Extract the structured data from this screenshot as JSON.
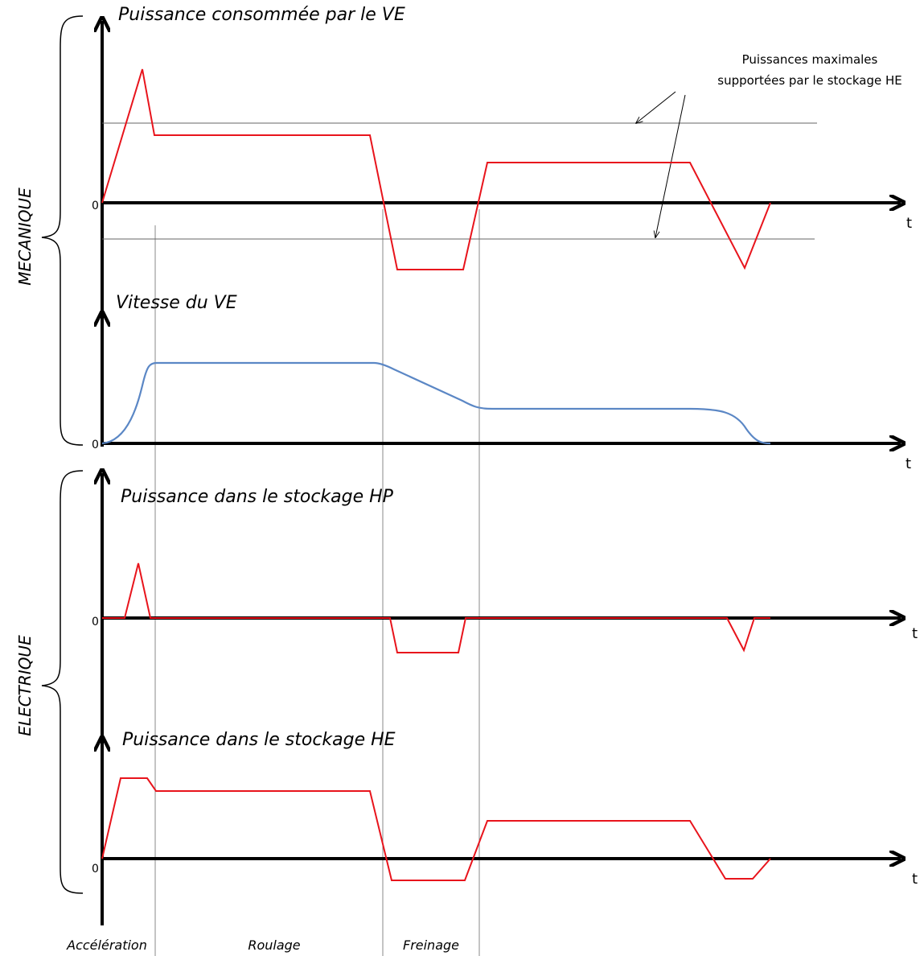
{
  "panels": {
    "meca_power": {
      "title": "Puissance consommée par le VE",
      "zero": "0",
      "t": "t"
    },
    "speed": {
      "title": "Vitesse du VE",
      "zero": "0",
      "t": "t"
    },
    "hp_power": {
      "title": "Puissance dans le stockage  HP",
      "zero": "0",
      "t": "t"
    },
    "he_power": {
      "title": "Puissance dans le stockage  HE",
      "zero": "0",
      "t": "t"
    }
  },
  "annotation": {
    "line1": "Puissances maximales",
    "line2": "supportées par le stockage HE"
  },
  "groups": {
    "mechanical": "MECANIQUE",
    "electrical": "ELECTRIQUE"
  },
  "phases": {
    "acceleration": "Accélération",
    "rolling": "Roulage",
    "braking": "Freinage"
  },
  "colors": {
    "power_curve": "#e8141c",
    "speed_curve": "#5b87c5",
    "axes": "#000000",
    "guides": "#888888"
  }
}
